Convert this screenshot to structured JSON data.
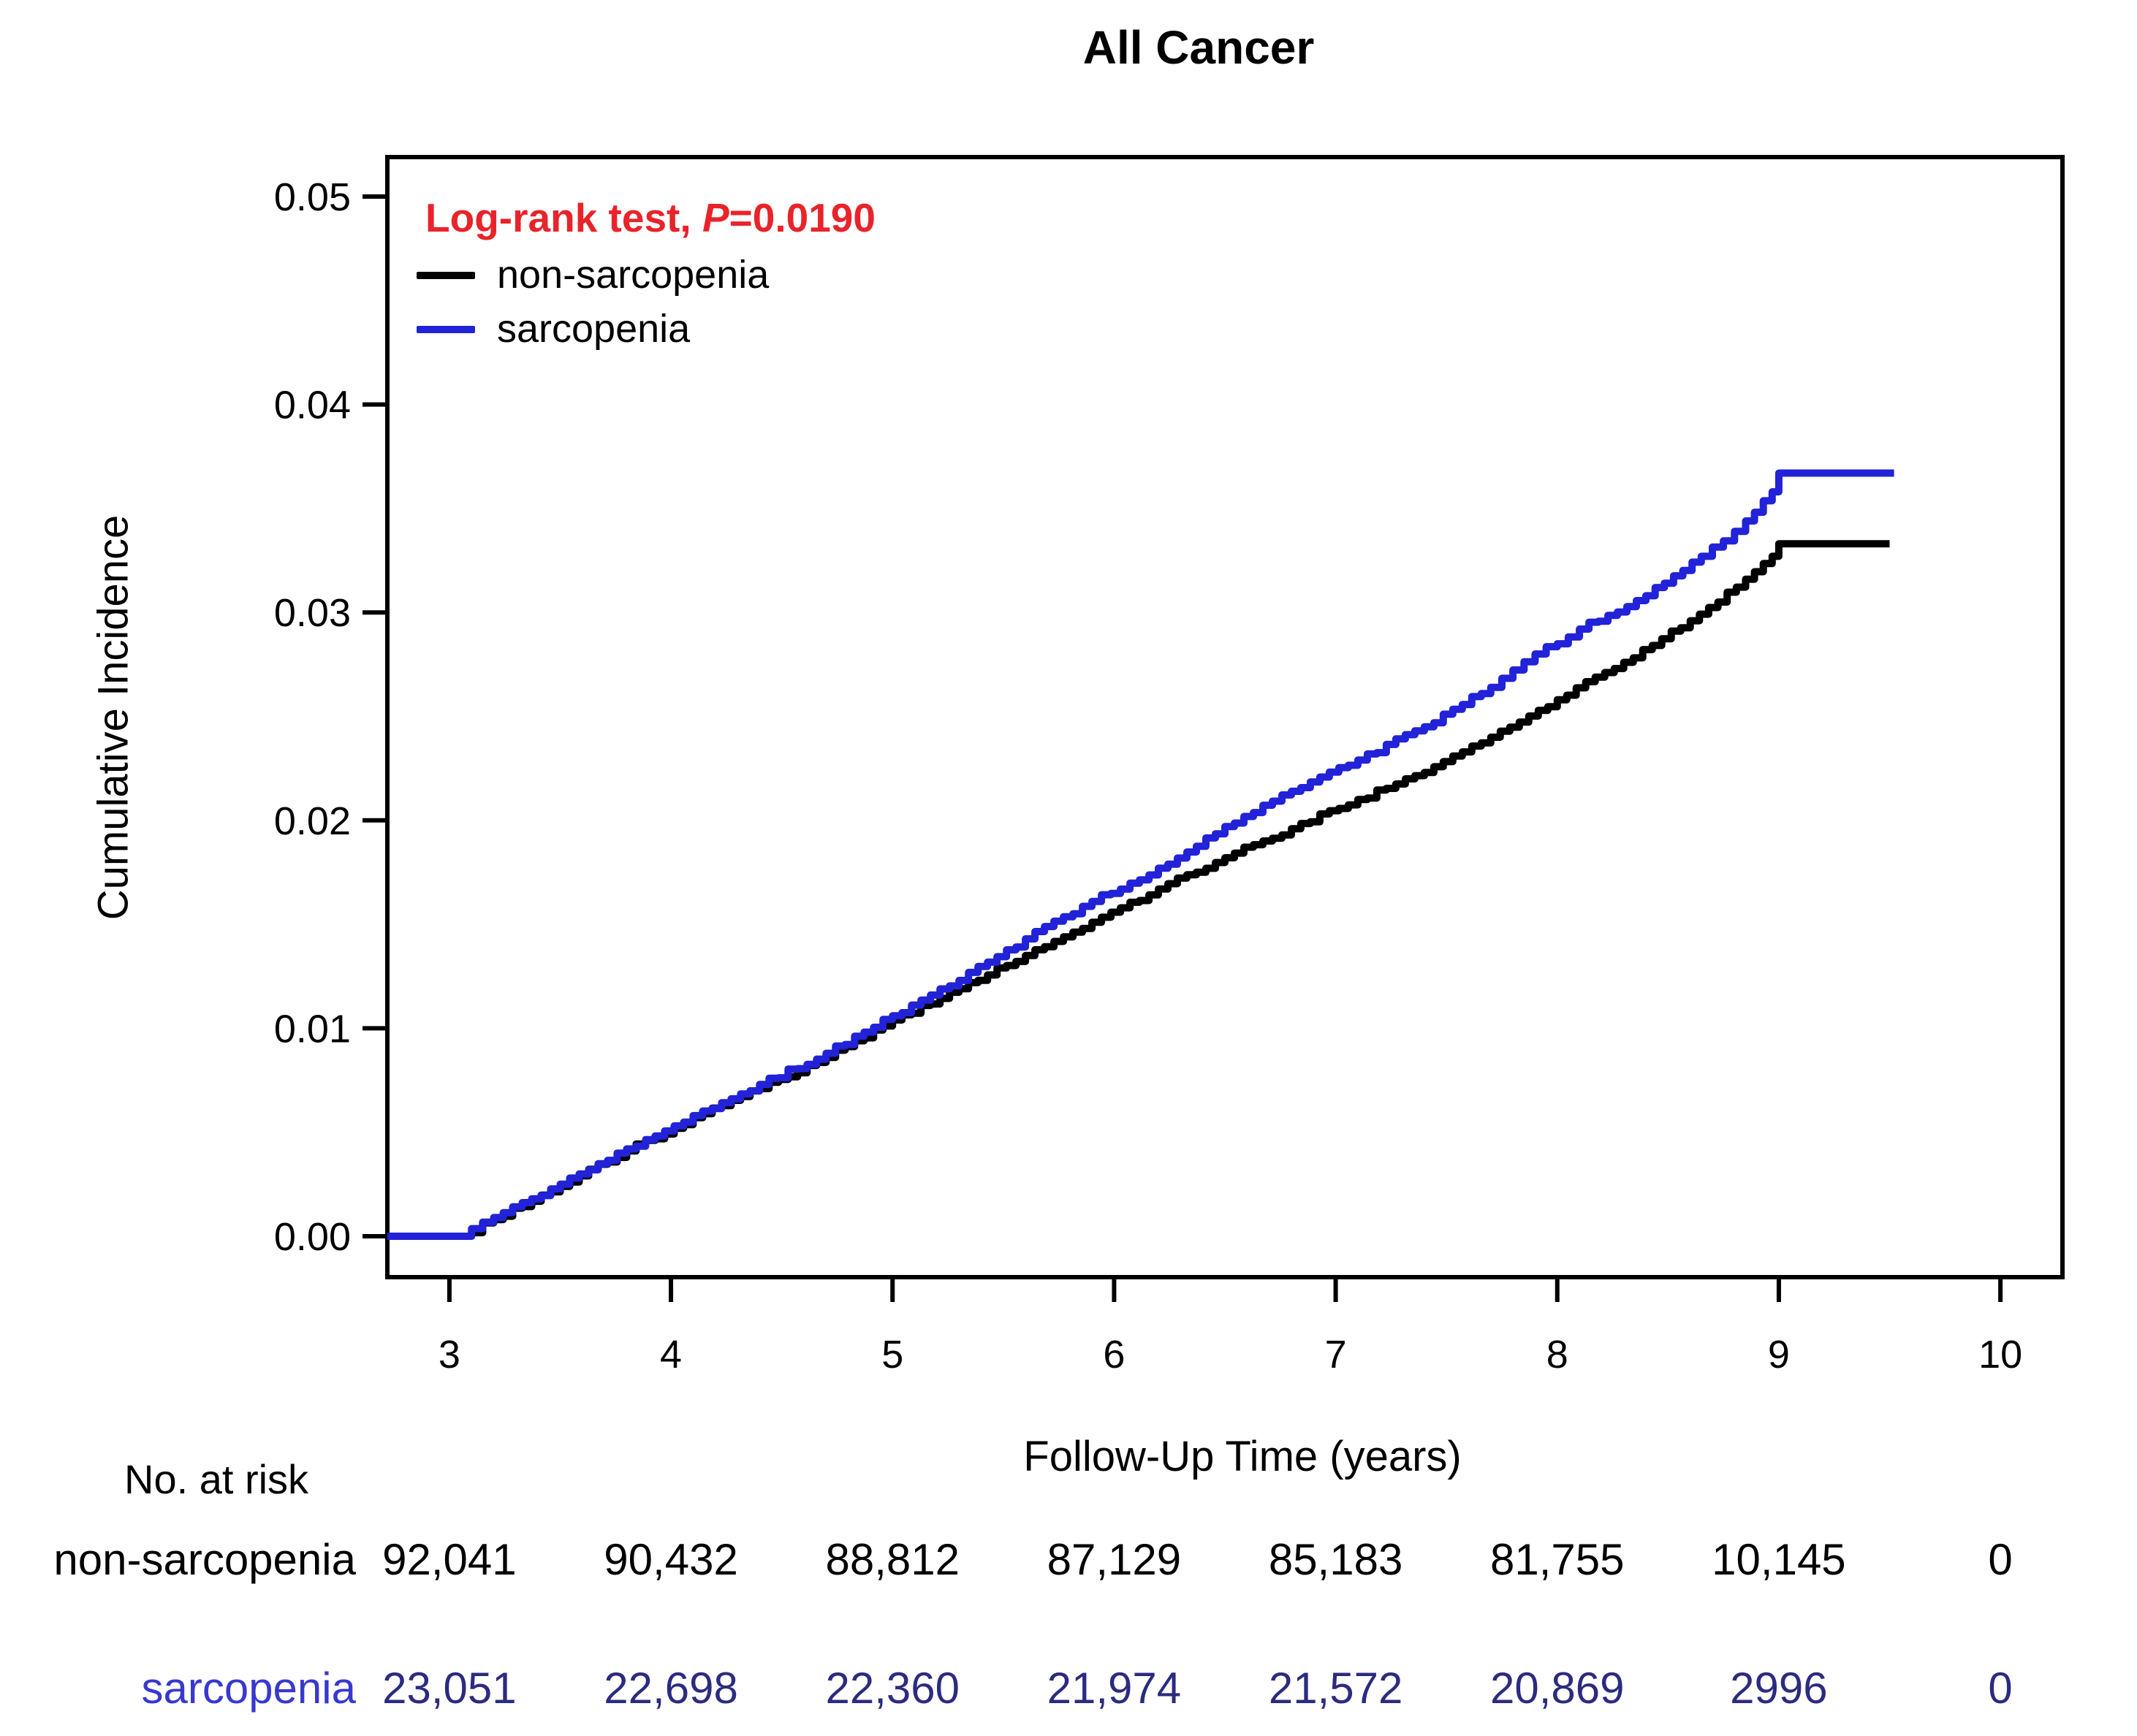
{
  "chart_data": {
    "type": "line",
    "subtype": "cumulative-incidence-step-curves",
    "title": "All Cancer",
    "xlabel": "Follow-Up Time (years)",
    "ylabel": "Cumulative Incidence",
    "xlim": [
      2.72,
      10.28
    ],
    "ylim": [
      0,
      0.05
    ],
    "x_tick_values": [
      3,
      4,
      5,
      6,
      7,
      8,
      9,
      10
    ],
    "x_tick_labels": [
      "3",
      "4",
      "5",
      "6",
      "7",
      "8",
      "9",
      "10"
    ],
    "y_tick_values": [
      0,
      0.01,
      0.02,
      0.03,
      0.04,
      0.05
    ],
    "y_tick_labels": [
      "0.00",
      "0.01",
      "0.02",
      "0.03",
      "0.04",
      "0.05"
    ],
    "grid": false,
    "legend_position": "top-left-inside",
    "annotation": {
      "prefix": "Log-rank test, ",
      "p_symbol": "P",
      "suffix": "=0.0190",
      "text": "Log-rank test, P=0.0190",
      "color": "#e9232a"
    },
    "series": [
      {
        "name": "non-sarcopenia",
        "color": "#000000",
        "points": [
          [
            2.72,
            0
          ],
          [
            3.05,
            0
          ],
          [
            3.2,
            0.0008
          ],
          [
            3.5,
            0.0024
          ],
          [
            3.8,
            0.0041
          ],
          [
            4.1,
            0.0057
          ],
          [
            4.4,
            0.0071
          ],
          [
            4.7,
            0.0086
          ],
          [
            5.0,
            0.0104
          ],
          [
            5.3,
            0.0119
          ],
          [
            5.6,
            0.0135
          ],
          [
            5.9,
            0.0151
          ],
          [
            6.2,
            0.0167
          ],
          [
            6.5,
            0.0182
          ],
          [
            6.8,
            0.0196
          ],
          [
            7.1,
            0.021
          ],
          [
            7.4,
            0.0223
          ],
          [
            7.7,
            0.024
          ],
          [
            8.0,
            0.0258
          ],
          [
            8.3,
            0.0276
          ],
          [
            8.6,
            0.0296
          ],
          [
            8.85,
            0.0316
          ],
          [
            8.97,
            0.0327
          ],
          [
            9.0,
            0.0333
          ],
          [
            9.5,
            0.0333
          ]
        ]
      },
      {
        "name": "sarcopenia",
        "color": "#2222d8",
        "points": [
          [
            2.72,
            0
          ],
          [
            3.05,
            0
          ],
          [
            3.2,
            0.0009
          ],
          [
            3.5,
            0.0025
          ],
          [
            3.8,
            0.0042
          ],
          [
            4.1,
            0.0058
          ],
          [
            4.4,
            0.0073
          ],
          [
            4.7,
            0.0088
          ],
          [
            5.0,
            0.0106
          ],
          [
            5.3,
            0.0123
          ],
          [
            5.6,
            0.0143
          ],
          [
            5.9,
            0.0161
          ],
          [
            6.2,
            0.0177
          ],
          [
            6.5,
            0.0197
          ],
          [
            6.8,
            0.0214
          ],
          [
            7.1,
            0.0229
          ],
          [
            7.4,
            0.0245
          ],
          [
            7.7,
            0.0264
          ],
          [
            7.9,
            0.028
          ],
          [
            8.1,
            0.0292
          ],
          [
            8.4,
            0.0308
          ],
          [
            8.65,
            0.0327
          ],
          [
            8.85,
            0.0344
          ],
          [
            8.97,
            0.0358
          ],
          [
            9.0,
            0.0367
          ],
          [
            9.52,
            0.0367
          ]
        ]
      }
    ],
    "risk_table": {
      "header": "No. at risk",
      "time_points": [
        3,
        4,
        5,
        6,
        7,
        8,
        9,
        10
      ],
      "rows": [
        {
          "label": "non-sarcopenia",
          "label_color": "#000000",
          "value_color": "#000000",
          "values": [
            "92,041",
            "90,432",
            "88,812",
            "87,129",
            "85,183",
            "81,755",
            "10,145",
            "0"
          ]
        },
        {
          "label": "sarcopenia",
          "label_color": "#3838cf",
          "value_color": "#2b2b80",
          "values": [
            "23,051",
            "22,698",
            "22,360",
            "21,974",
            "21,572",
            "20,869",
            "2996",
            "0"
          ]
        }
      ]
    }
  }
}
